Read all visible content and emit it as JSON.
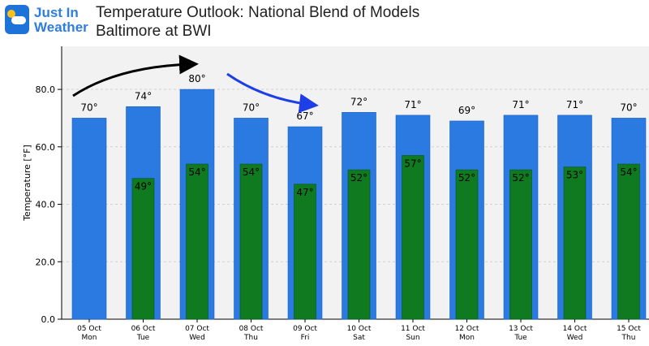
{
  "logo": {
    "line1": "Just In",
    "line2": "Weather"
  },
  "header": {
    "title": "Temperature Outlook: National Blend of Models",
    "subtitle": "Baltimore at BWI"
  },
  "colors": {
    "high_bar": "#2a7ae2",
    "low_bar": "#0f7a1f",
    "plot_bg": "#f2f2f2",
    "arrow_black": "#000000",
    "arrow_blue": "#1e3ee6"
  },
  "chart_data": {
    "type": "bar",
    "ylabel": "Temperature [°F]",
    "ylim": [
      0,
      95
    ],
    "yticks": [
      "0.0",
      "20.0",
      "40.0",
      "60.0",
      "80.0"
    ],
    "ytick_values": [
      0,
      20,
      40,
      60,
      80
    ],
    "grid": "horizontal",
    "categories": [
      {
        "date": "05 Oct",
        "day": "Mon"
      },
      {
        "date": "06 Oct",
        "day": "Tue"
      },
      {
        "date": "07 Oct",
        "day": "Wed"
      },
      {
        "date": "08 Oct",
        "day": "Thu"
      },
      {
        "date": "09 Oct",
        "day": "Fri"
      },
      {
        "date": "10 Oct",
        "day": "Sat"
      },
      {
        "date": "11 Oct",
        "day": "Sun"
      },
      {
        "date": "12 Oct",
        "day": "Mon"
      },
      {
        "date": "13 Oct",
        "day": "Tue"
      },
      {
        "date": "14 Oct",
        "day": "Wed"
      },
      {
        "date": "15 Oct",
        "day": "Thu"
      }
    ],
    "series": [
      {
        "values": [
          70,
          74,
          80,
          70,
          67,
          72,
          71,
          69,
          71,
          71,
          70
        ],
        "labels": [
          "70°",
          "74°",
          "80°",
          "70°",
          "67°",
          "72°",
          "71°",
          "69°",
          "71°",
          "71°",
          "70°"
        ]
      },
      {
        "values": [
          null,
          49,
          54,
          54,
          47,
          52,
          57,
          52,
          52,
          53,
          54
        ],
        "labels": [
          "",
          "49°",
          "54°",
          "54°",
          "47°",
          "52°",
          "57°",
          "52°",
          "52°",
          "53°",
          "54°"
        ]
      }
    ]
  }
}
